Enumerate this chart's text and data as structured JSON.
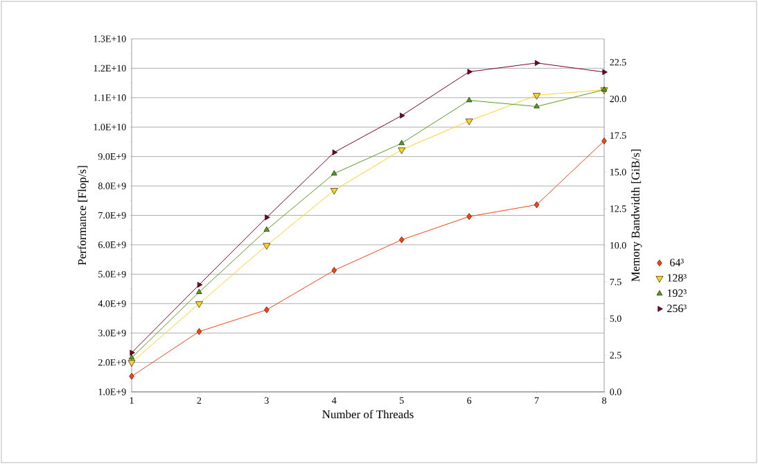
{
  "chart_data": {
    "type": "line",
    "xlabel": "Number of Threads",
    "ylabel": "Performance [Flop/s]",
    "y2label": "Memory Bandwidth [GiB/s]",
    "x": [
      1,
      2,
      3,
      4,
      5,
      6,
      7,
      8
    ],
    "series": [
      {
        "name": "64³",
        "color": "#ff420e",
        "marker": "diamond",
        "values": [
          1530000000,
          3050000000,
          3790000000,
          5130000000,
          6170000000,
          6960000000,
          7360000000,
          9530000000
        ]
      },
      {
        "name": "128³",
        "color": "#ffd320",
        "marker": "triangle_down",
        "values": [
          2000000000,
          4000000000,
          5980000000,
          7850000000,
          9230000000,
          10210000000,
          11080000000,
          11270000000
        ]
      },
      {
        "name": "192³",
        "color": "#579d1c",
        "marker": "triangle",
        "values": [
          2160000000,
          4390000000,
          6510000000,
          8420000000,
          9450000000,
          10910000000,
          10700000000,
          11270000000
        ]
      },
      {
        "name": "256³",
        "color": "#7e0021",
        "marker": "triangle_right",
        "values": [
          2330000000,
          4640000000,
          6930000000,
          9140000000,
          10390000000,
          11880000000,
          12180000000,
          11870000000
        ]
      }
    ],
    "xlim": [
      1,
      8
    ],
    "xticks": [
      1,
      2,
      3,
      4,
      5,
      6,
      7,
      8
    ],
    "ylim": [
      1000000000,
      13000000000
    ],
    "yticks": [
      {
        "value": 1000000000,
        "label": "1.0E+9"
      },
      {
        "value": 2000000000,
        "label": "2.0E+9"
      },
      {
        "value": 3000000000,
        "label": "3.0E+9"
      },
      {
        "value": 4000000000,
        "label": "4.0E+9"
      },
      {
        "value": 5000000000,
        "label": "5.0E+9"
      },
      {
        "value": 6000000000,
        "label": "6.0E+9"
      },
      {
        "value": 7000000000,
        "label": "7.0E+9"
      },
      {
        "value": 8000000000,
        "label": "8.0E+9"
      },
      {
        "value": 9000000000,
        "label": "9.0E+9"
      },
      {
        "value": 10000000000,
        "label": "1.0E+10"
      },
      {
        "value": 11000000000,
        "label": "1.1E+10"
      },
      {
        "value": 12000000000,
        "label": "1.2E+10"
      },
      {
        "value": 13000000000,
        "label": "1.3E+10"
      }
    ],
    "y2lim": [
      0,
      24.1
    ],
    "y2ticks": [
      {
        "value": 0,
        "label": "0.0"
      },
      {
        "value": 2.5,
        "label": "2.5"
      },
      {
        "value": 5,
        "label": "5.0"
      },
      {
        "value": 7.5,
        "label": "7.5"
      },
      {
        "value": 10,
        "label": "10.0"
      },
      {
        "value": 12.5,
        "label": "12.5"
      },
      {
        "value": 15,
        "label": "15.0"
      },
      {
        "value": 17.5,
        "label": "17.5"
      },
      {
        "value": 20,
        "label": "20.0"
      },
      {
        "value": 22.5,
        "label": "22.5"
      }
    ],
    "grid": "y",
    "legend": "right",
    "line_style": "solid"
  }
}
